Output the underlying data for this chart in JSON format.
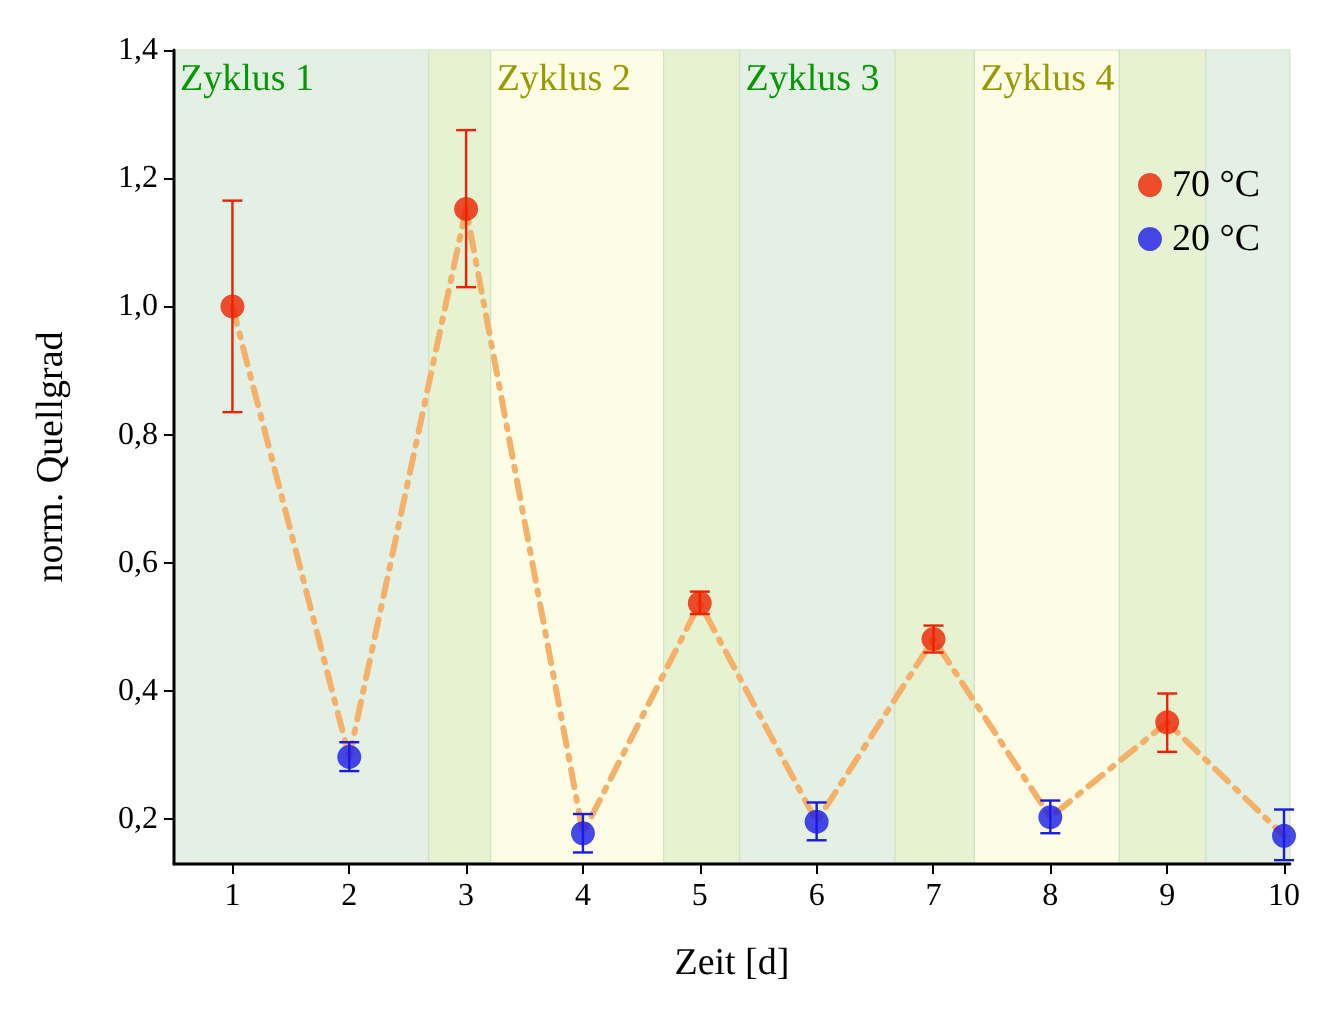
{
  "chart_data": {
    "type": "scatter",
    "xlabel": "Zeit [d]",
    "ylabel": "norm. Quellgrad",
    "xlim": [
      0.5,
      10.05
    ],
    "xticks": [
      1,
      2,
      3,
      4,
      5,
      6,
      7,
      8,
      9,
      10
    ],
    "ylim": [
      0.13,
      1.4
    ],
    "yticks": [
      {
        "value": 0.2,
        "label": "0,2"
      },
      {
        "value": 0.4,
        "label": "0,4"
      },
      {
        "value": 0.6,
        "label": "0,6"
      },
      {
        "value": 0.8,
        "label": "0,8"
      },
      {
        "value": 1.0,
        "label": "1,0"
      },
      {
        "value": 1.2,
        "label": "1,2"
      },
      {
        "value": 1.4,
        "label": "1,4"
      }
    ],
    "legend": "top right",
    "marker": "circle",
    "series": [
      {
        "type": "line",
        "color": "#f5b06a",
        "line_style": "dashed",
        "marker": "none",
        "x": [
          1,
          2,
          3,
          4,
          5,
          6,
          7,
          8,
          9,
          10
        ],
        "values": [
          1.0,
          0.297,
          1.152,
          0.178,
          0.537,
          0.196,
          0.481,
          0.203,
          0.351,
          0.174
        ]
      },
      {
        "name": "70 °C",
        "color": "#ee2200",
        "x": [
          1,
          3,
          5,
          7,
          9
        ],
        "values": [
          1.0,
          1.152,
          0.537,
          0.481,
          0.351
        ],
        "errors": [
          [
            0.835,
            1.165
          ],
          [
            1.03,
            1.275
          ],
          [
            0.52,
            0.555
          ],
          [
            0.46,
            0.502
          ],
          [
            0.305,
            0.396
          ]
        ]
      },
      {
        "name": "20 °C",
        "color": "#1a1ae6",
        "x": [
          2,
          4,
          6,
          8,
          10
        ],
        "values": [
          0.297,
          0.178,
          0.196,
          0.203,
          0.174
        ],
        "errors": [
          [
            0.275,
            0.32
          ],
          [
            0.148,
            0.208
          ],
          [
            0.167,
            0.226
          ],
          [
            0.178,
            0.229
          ],
          [
            0.136,
            0.215
          ]
        ]
      }
    ],
    "bands": [
      {
        "axis": "x",
        "from": 0.5,
        "to": 2.68,
        "label": "Zyklus 1",
        "color": "#e5f0e5"
      },
      {
        "axis": "x",
        "from": 2.68,
        "to": 3.21,
        "color": "#e6f2d2"
      },
      {
        "axis": "x",
        "from": 3.21,
        "to": 4.69,
        "label": "Zyklus 2",
        "color": "#fdfde6"
      },
      {
        "axis": "x",
        "from": 4.69,
        "to": 5.34,
        "color": "#e6f2d2"
      },
      {
        "axis": "x",
        "from": 5.34,
        "to": 6.67,
        "label": "Zyklus 3",
        "color": "#e5f0e5"
      },
      {
        "axis": "x",
        "from": 6.67,
        "to": 7.35,
        "color": "#e6f2d2"
      },
      {
        "axis": "x",
        "from": 7.35,
        "to": 8.59,
        "label": "Zyklus 4",
        "color": "#fdfde6"
      },
      {
        "axis": "x",
        "from": 8.59,
        "to": 9.33,
        "color": "#e6f2d2"
      },
      {
        "axis": "x",
        "from": 9.33,
        "to": 10.05,
        "color": "#e5f0e5"
      }
    ]
  }
}
